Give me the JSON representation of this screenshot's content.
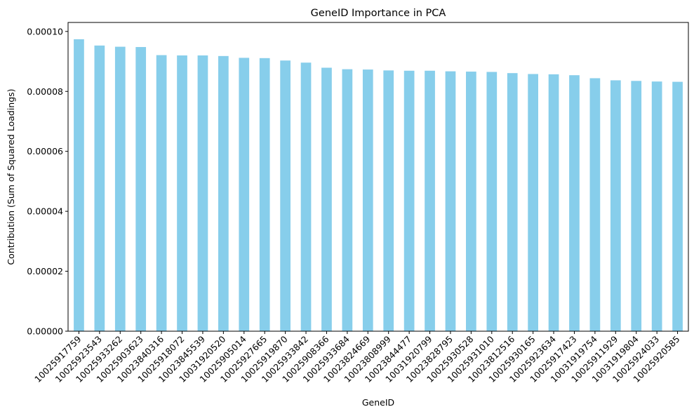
{
  "chart_data": {
    "type": "bar",
    "title": "GeneID Importance in PCA",
    "xlabel": "GeneID",
    "ylabel": "Contribution (Sum of Squared Loadings)",
    "ylim": [
      0,
      0.000103
    ],
    "yticks": [
      "0.00000",
      "0.00002",
      "0.00004",
      "0.00006",
      "0.00008",
      "0.00010"
    ],
    "ytick_values": [
      0,
      2e-05,
      4e-05,
      6e-05,
      8e-05,
      0.0001
    ],
    "bar_color": "#87ceeb",
    "grid": false,
    "legend": "none",
    "categories": [
      "10025917759",
      "10025923543",
      "10025933262",
      "10025903623",
      "10023840316",
      "10025918072",
      "10023845539",
      "10031920520",
      "10025905014",
      "10025927665",
      "10025919870",
      "10025933842",
      "10025908366",
      "10025933684",
      "10023824669",
      "10023808999",
      "10023844477",
      "10031920799",
      "10023828795",
      "10025930528",
      "10025931010",
      "10023812516",
      "10025930165",
      "10025923634",
      "10025917423",
      "10031919754",
      "10025911929",
      "10031919804",
      "10025924033",
      "10025920585"
    ],
    "values": [
      9.74e-05,
      9.53e-05,
      9.49e-05,
      9.48e-05,
      9.21e-05,
      9.2e-05,
      9.2e-05,
      9.18e-05,
      9.12e-05,
      9.11e-05,
      9.03e-05,
      8.96e-05,
      8.79e-05,
      8.74e-05,
      8.73e-05,
      8.7e-05,
      8.69e-05,
      8.69e-05,
      8.67e-05,
      8.66e-05,
      8.65e-05,
      8.61e-05,
      8.58e-05,
      8.57e-05,
      8.54e-05,
      8.44e-05,
      8.37e-05,
      8.35e-05,
      8.33e-05,
      8.32e-05
    ]
  }
}
